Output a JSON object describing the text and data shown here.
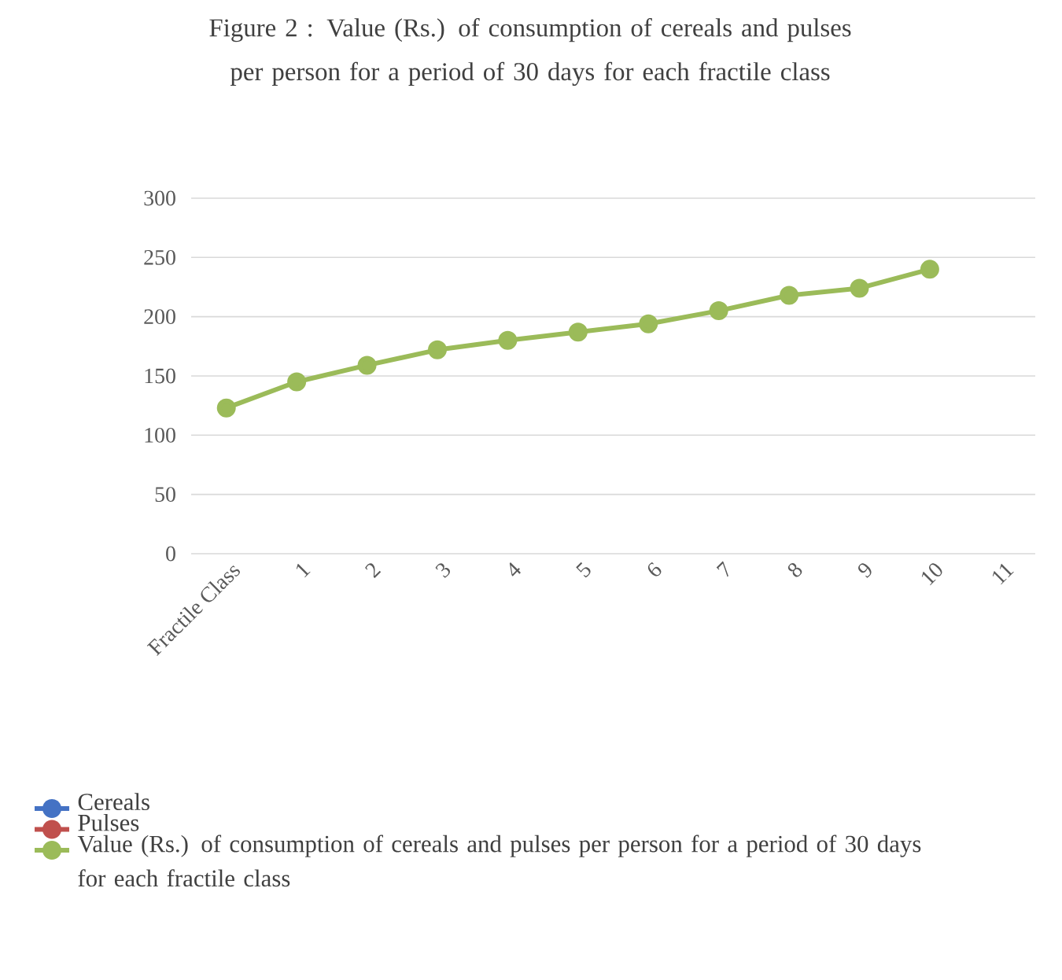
{
  "chart_data": {
    "type": "line",
    "title": "Figure 2 : Value (Rs.) of consumption of cereals and pulses per person for a period of 30 days for each fractile class",
    "categories": [
      "Fractile Class",
      "1",
      "2",
      "3",
      "4",
      "5",
      "6",
      "7",
      "8",
      "9",
      "10",
      "11"
    ],
    "series": [
      {
        "name": "Cereals",
        "color": "#4472c4",
        "values": [
          null,
          null,
          null,
          null,
          null,
          null,
          null,
          null,
          null,
          null,
          null,
          null
        ]
      },
      {
        "name": "Pulses",
        "color": "#c0504d",
        "values": [
          null,
          null,
          null,
          null,
          null,
          null,
          null,
          null,
          null,
          null,
          null,
          null
        ]
      },
      {
        "name": "Value (Rs.) of consumption of cereals and pulses per person for a period of 30 days for each fractile class",
        "color": "#9bbb59",
        "values": [
          123,
          145,
          159,
          172,
          180,
          187,
          194,
          205,
          218,
          224,
          240,
          null
        ]
      }
    ],
    "ylim": [
      0,
      300
    ],
    "yticks": [
      0,
      50,
      100,
      150,
      200,
      250,
      300
    ],
    "grid": "y",
    "legend": "bottom",
    "marker": "circle",
    "line_style": "solid"
  }
}
